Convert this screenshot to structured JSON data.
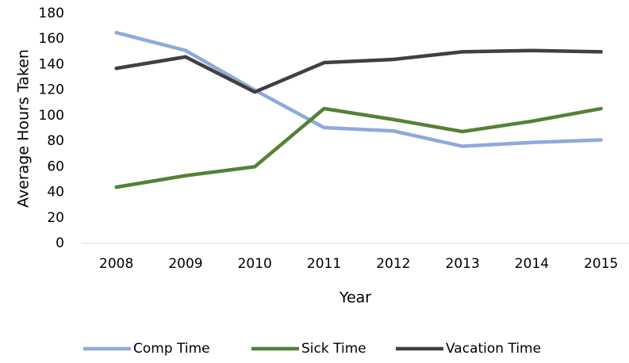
{
  "chart_data": {
    "type": "line",
    "x_label": "Year",
    "y_label": "Average Hours Taken",
    "categories": [
      "2008",
      "2009",
      "2010",
      "2011",
      "2012",
      "2013",
      "2014",
      "2015"
    ],
    "series": [
      {
        "name": "Comp Time",
        "color": "#8eaadb",
        "values": [
          165,
          151,
          120,
          90.6,
          88,
          76,
          79,
          81
        ]
      },
      {
        "name": "Sick Time",
        "color": "#548235",
        "values": [
          44,
          53,
          60,
          105.5,
          97,
          87.5,
          95.6,
          105.5
        ]
      },
      {
        "name": "Vacation Time",
        "color": "#404040",
        "values": [
          137,
          146,
          118.5,
          141.5,
          144,
          150,
          151,
          150
        ]
      }
    ],
    "ylim": [
      0,
      180
    ],
    "yticks": [
      0,
      20,
      40,
      60,
      80,
      100,
      120,
      140,
      160,
      180
    ],
    "grid": false,
    "legend": "bottom"
  }
}
